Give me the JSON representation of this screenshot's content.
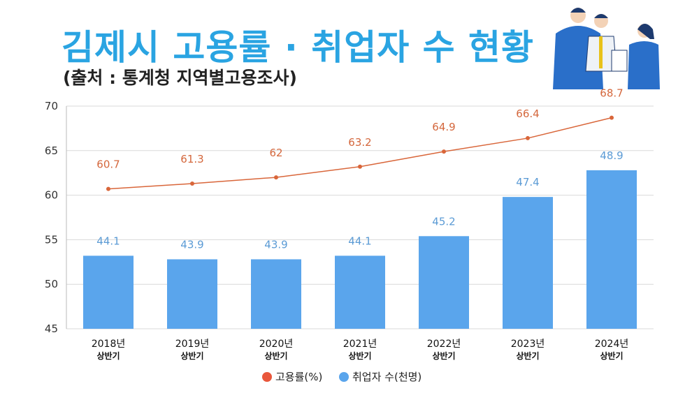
{
  "title": "김제시 고용률 · 취업자 수 현황",
  "subtitle": "(출처 : 통계청 지역별고용조사)",
  "chart_data": {
    "type": "bar+line",
    "categories": [
      "2018년 상반기",
      "2019년 상반기",
      "2020년 상반기",
      "2021년 상반기",
      "2022년 상반기",
      "2023년 상반기",
      "2024년 상반기"
    ],
    "category_lines": [
      [
        "2018년",
        "상반기"
      ],
      [
        "2019년",
        "상반기"
      ],
      [
        "2020년",
        "상반기"
      ],
      [
        "2021년",
        "상반기"
      ],
      [
        "2022년",
        "상반기"
      ],
      [
        "2023년",
        "상반기"
      ],
      [
        "2024년",
        "상반기"
      ]
    ],
    "series": [
      {
        "name": "고용률(%)",
        "type": "line",
        "axis": "left",
        "color": "#d9663a",
        "values": [
          60.7,
          61.3,
          62,
          63.2,
          64.9,
          66.4,
          68.7
        ]
      },
      {
        "name": "취업자 수(천명)",
        "type": "bar",
        "axis": "secondary-hidden",
        "color": "#5aa5ec",
        "values": [
          44.1,
          43.9,
          43.9,
          44.1,
          45.2,
          47.4,
          48.9
        ]
      }
    ],
    "ylim": [
      45,
      70
    ],
    "yticks": [
      45,
      50,
      55,
      60,
      65,
      70
    ],
    "secondary_ylim": [
      40,
      52.5
    ],
    "grid": true,
    "legend": "bottom"
  }
}
